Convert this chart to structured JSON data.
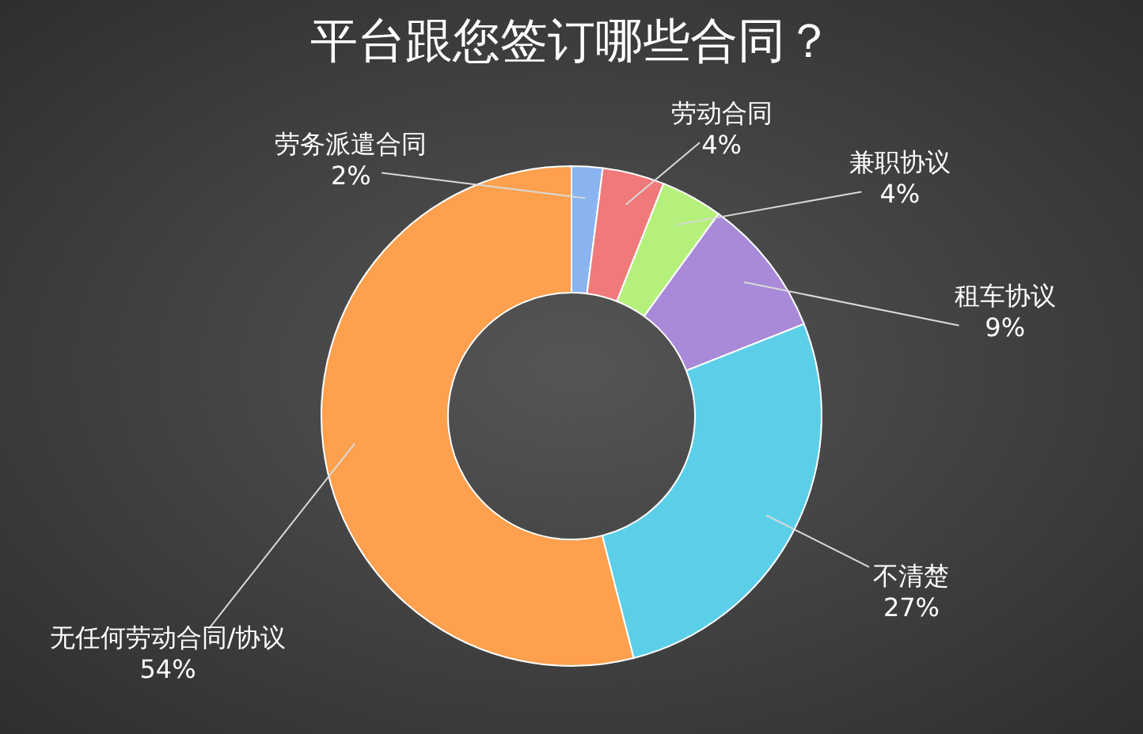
{
  "chart_data": {
    "type": "donut",
    "title": "平台跟您签订哪些合同？",
    "categories": [
      "劳务派遣合同",
      "劳动合同",
      "兼职协议",
      "租车协议",
      "不清楚",
      "无任何劳动合同/协议"
    ],
    "values": [
      2,
      4,
      4,
      9,
      27,
      54
    ],
    "value_labels": [
      "2%",
      "4%",
      "4%",
      "9%",
      "27%",
      "54%"
    ],
    "colors": [
      "#8ab4f0",
      "#f07a7a",
      "#b6f07c",
      "#a98ad8",
      "#5ccfe8",
      "#ffa04e"
    ],
    "legend": false
  }
}
